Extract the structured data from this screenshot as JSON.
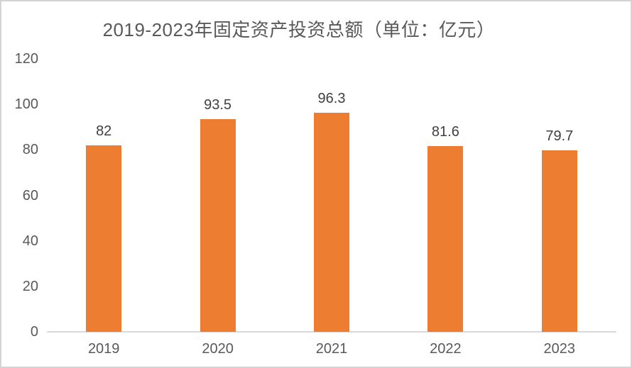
{
  "chart_data": {
    "type": "bar",
    "title": "2019-2023年固定资产投资总额（单位：亿元）",
    "categories": [
      "2019",
      "2020",
      "2021",
      "2022",
      "2023"
    ],
    "values": [
      82,
      93.5,
      96.3,
      81.6,
      79.7
    ],
    "value_labels": [
      "82",
      "93.5",
      "96.3",
      "81.6",
      "79.7"
    ],
    "xlabel": "",
    "ylabel": "",
    "ylim": [
      0,
      120
    ],
    "yticks": [
      0,
      20,
      40,
      60,
      80,
      100,
      120
    ],
    "grid": false,
    "legend": "none",
    "bar_color": "#ED7D31",
    "value_label_color": "#404040",
    "axis_text_color": "#595959",
    "axis_line_color": "#D9D9D9",
    "title_color": "#595959",
    "background_color": "#FFFFFF"
  }
}
